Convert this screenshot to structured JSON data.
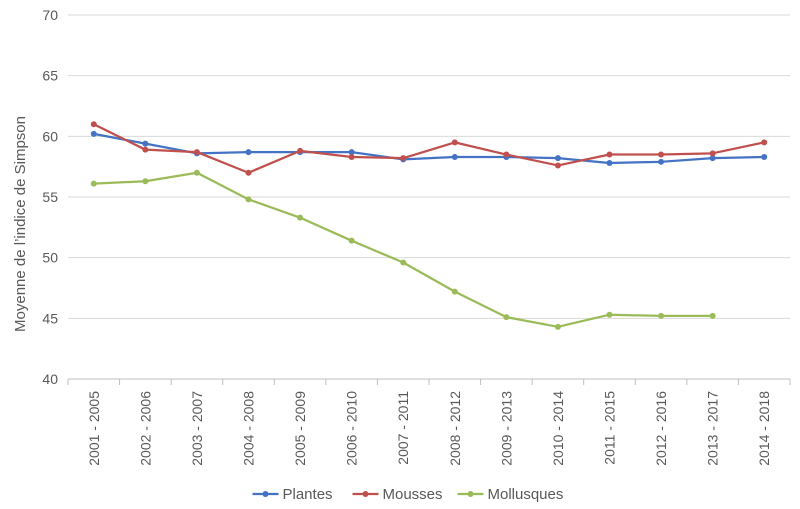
{
  "chart_data": {
    "type": "line",
    "title": "",
    "xlabel": "",
    "ylabel": "Moyenne de l’indice de Simpson",
    "ylim": [
      40,
      70
    ],
    "yticks": [
      "40",
      "45",
      "50",
      "55",
      "60",
      "65",
      "70"
    ],
    "categories": [
      "2001 - 2005",
      "2002 - 2006",
      "2003 - 2007",
      "2004 - 2008",
      "2005 - 2009",
      "2006 - 2010",
      "2007 - 2011",
      "2008 - 2012",
      "2009 - 2013",
      "2010 - 2014",
      "2011 - 2015",
      "2012 - 2016",
      "2013 - 2017",
      "2014 - 2018"
    ],
    "grid": true,
    "legend_position": "bottom",
    "series": [
      {
        "name": "Plantes",
        "color": "#4472C4",
        "values": [
          60.2,
          59.4,
          58.6,
          58.7,
          58.7,
          58.7,
          58.1,
          58.3,
          58.3,
          58.2,
          57.8,
          57.9,
          58.2,
          58.3
        ]
      },
      {
        "name": "Mousses",
        "color": "#C0504D",
        "values": [
          61.0,
          58.9,
          58.7,
          57.0,
          58.8,
          58.3,
          58.2,
          59.5,
          58.5,
          57.6,
          58.5,
          58.5,
          58.6,
          59.5
        ]
      },
      {
        "name": "Mollusques",
        "color": "#9BBB59",
        "values": [
          56.1,
          56.3,
          57.0,
          54.8,
          53.3,
          51.4,
          49.6,
          47.2,
          45.1,
          44.3,
          45.3,
          45.2,
          45.2,
          null
        ]
      }
    ]
  }
}
